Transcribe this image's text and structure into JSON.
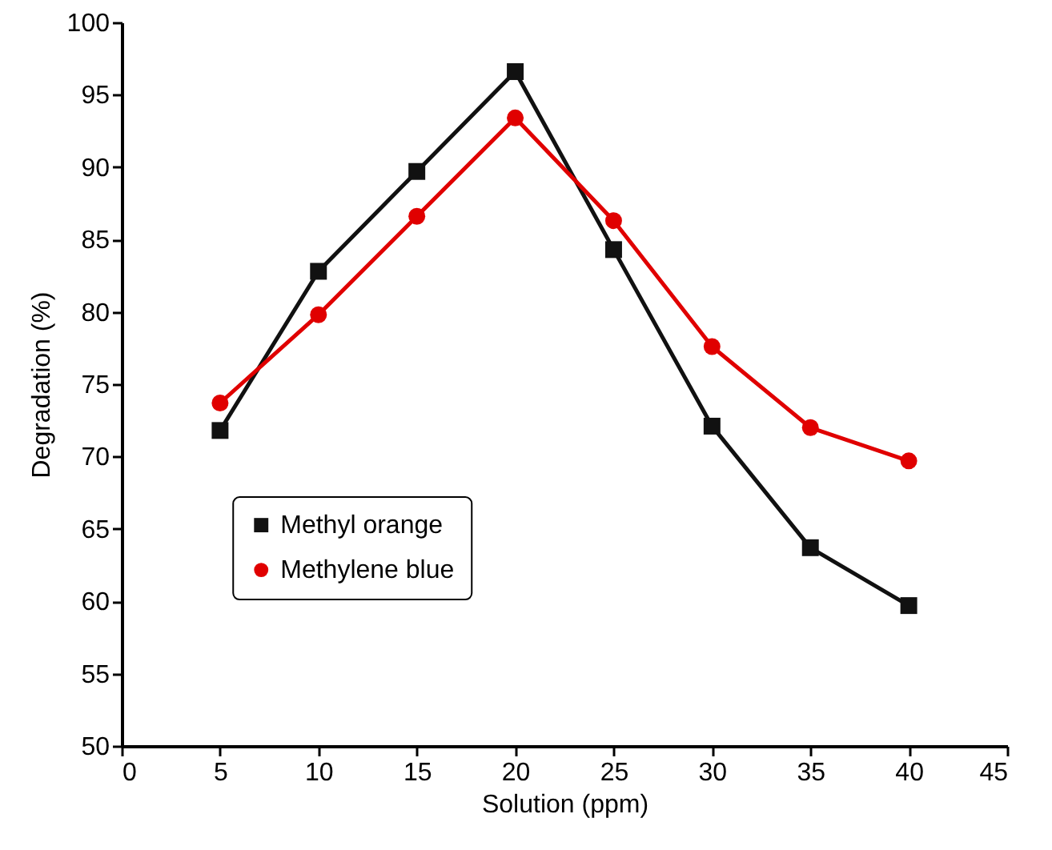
{
  "chart_data": {
    "type": "line",
    "xlabel": "Solution (ppm)",
    "ylabel": "Degradation (%)",
    "x": [
      5,
      10,
      15,
      20,
      25,
      30,
      35,
      40
    ],
    "series": [
      {
        "name": "Methyl orange",
        "color": "#111111",
        "marker": "square",
        "values": [
          71.8,
          82.8,
          89.7,
          96.6,
          84.3,
          72.1,
          63.7,
          59.7
        ]
      },
      {
        "name": "Methylene blue",
        "color": "#e00000",
        "marker": "circle",
        "values": [
          73.7,
          79.8,
          86.6,
          93.4,
          86.3,
          77.6,
          72.0,
          69.7
        ]
      }
    ],
    "xlim": [
      0,
      45
    ],
    "xticks": [
      0,
      5,
      10,
      15,
      20,
      25,
      30,
      35,
      40,
      45
    ],
    "ylim": [
      50,
      100
    ],
    "yticks": [
      50,
      55,
      60,
      65,
      70,
      75,
      80,
      85,
      90,
      95,
      100
    ],
    "grid": false,
    "legend": "left",
    "line_style": "solid"
  }
}
